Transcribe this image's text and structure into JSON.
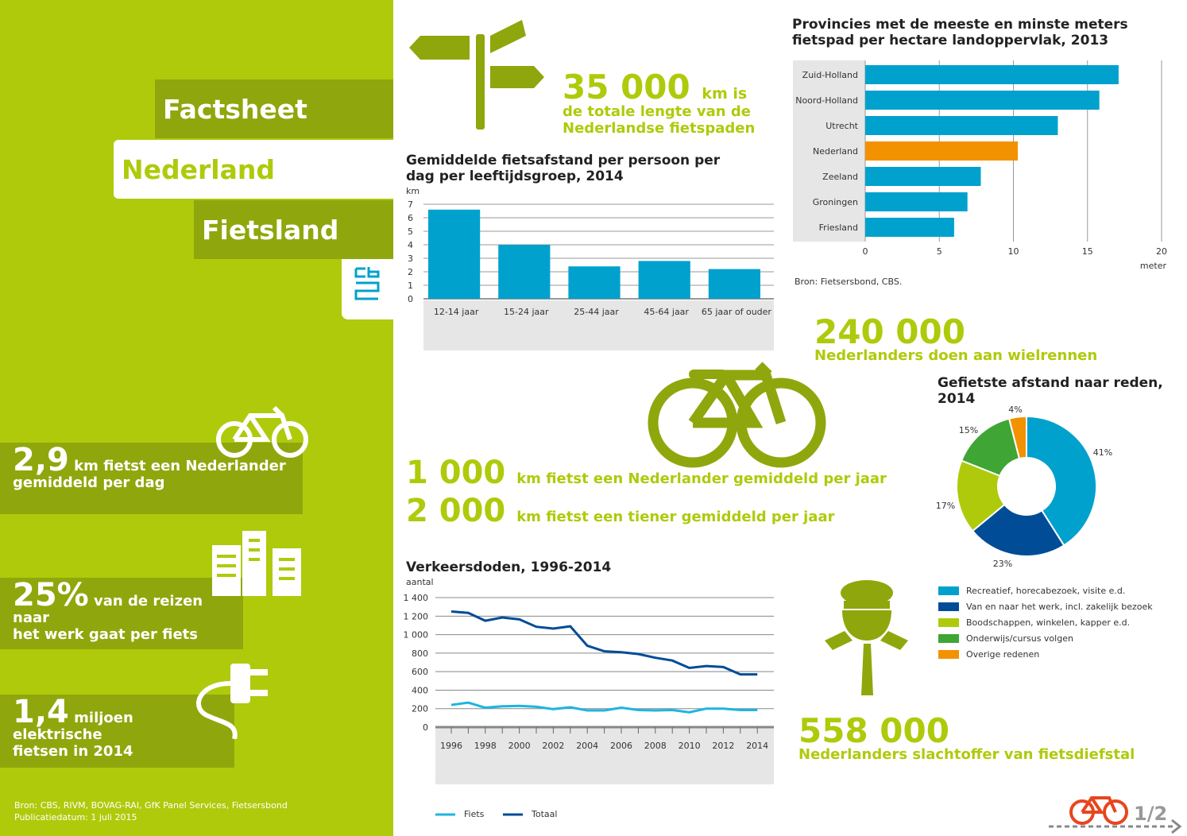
{
  "left": {
    "banners": [
      "Factsheet",
      "Nederland",
      "Fietsland"
    ],
    "stats": [
      {
        "big": "2,9",
        "text1": "km fietst een Nederlander",
        "text2": "gemiddeld per dag"
      },
      {
        "big": "25%",
        "text1": "van de reizen naar",
        "text2": "het werk gaat per fiets"
      },
      {
        "big": "1,4",
        "text1": "miljoen elektrische",
        "text2": "fietsen in 2014"
      }
    ],
    "source": "Bron: CBS, RIVM, BOVAG-RAI, GfK Panel Services, Fietsersbond",
    "date": "Publicatiedatum: 1 juli 2015"
  },
  "facts": {
    "f1_big": "35 000",
    "f1_unit": "km is",
    "f1_text1": "de totale lengte van de",
    "f1_text2": "Nederlandse fietspaden",
    "f2_big": "240 000",
    "f2_text": "Nederlanders doen aan wielrennen",
    "f3_big": "1 000",
    "f3_text": "km fietst een Nederlander gemiddeld per jaar",
    "f4_big": "2 000",
    "f4_text": "km fietst een tiener gemiddeld per jaar",
    "f5_big": "558 000",
    "f5_text": "Nederlanders slachtoffer van fietsdiefstal"
  },
  "page": "1/2",
  "colors": {
    "lime": "#afca0b",
    "olive": "#8fa70c",
    "blue": "#00a1cd",
    "darkblue": "#004c97",
    "orange": "#f39200",
    "green": "#3fa535"
  },
  "chart_data": [
    {
      "type": "bar",
      "title": "Gemiddelde fietsafstand per persoon per dag per leeftijdsgroep, 2014",
      "ylabel": "km",
      "ylim": [
        0,
        7
      ],
      "yticks": [
        0,
        1,
        2,
        3,
        4,
        5,
        6,
        7
      ],
      "categories": [
        "12-14 jaar",
        "15-24 jaar",
        "25-44 jaar",
        "45-64 jaar",
        "65 jaar of ouder"
      ],
      "values": [
        6.6,
        4.0,
        2.4,
        2.8,
        2.2
      ]
    },
    {
      "type": "bar",
      "orientation": "horizontal",
      "title": "Provincies met de meeste en minste meters fietspad per hectare landoppervlak, 2013",
      "xlabel": "meter",
      "xlim": [
        0,
        20
      ],
      "xticks": [
        0,
        5,
        10,
        15,
        20
      ],
      "categories": [
        "Zuid-Holland",
        "Noord-Holland",
        "Utrecht",
        "Nederland",
        "Zeeland",
        "Groningen",
        "Friesland"
      ],
      "values": [
        17.1,
        15.8,
        13.0,
        10.3,
        7.8,
        6.9,
        6.0
      ],
      "highlight": "Nederland",
      "source": "Bron: Fietsersbond, CBS."
    },
    {
      "type": "pie",
      "title": "Gefietste afstand naar reden, 2014",
      "categories": [
        "Recreatief, horecabezoek, visite e.d.",
        "Van en naar het werk, incl. zakelijk bezoek",
        "Boodschappen, winkelen, kapper e.d.",
        "Onderwijs/cursus volgen",
        "Overige redenen"
      ],
      "values": [
        41,
        23,
        17,
        15,
        4
      ],
      "labels": [
        "41%",
        "23%",
        "17%",
        "15%",
        "4%"
      ],
      "colors": [
        "#00a1cd",
        "#004c97",
        "#afca0b",
        "#3fa535",
        "#f39200"
      ]
    },
    {
      "type": "line",
      "title": "Verkeersdoden, 1996-2014",
      "ylabel": "aantal",
      "ylim": [
        0,
        1400
      ],
      "yticks": [
        "0",
        "200",
        "400",
        "600",
        "800",
        "1 000",
        "1 200",
        "1 400"
      ],
      "xticks": [
        "1996",
        "1998",
        "2000",
        "2002",
        "2004",
        "2006",
        "2008",
        "2010",
        "2012",
        "2014"
      ],
      "x": [
        1996,
        1997,
        1998,
        1999,
        2000,
        2001,
        2002,
        2003,
        2004,
        2005,
        2006,
        2007,
        2008,
        2009,
        2010,
        2011,
        2012,
        2013,
        2014
      ],
      "series": [
        {
          "name": "Fiets",
          "color": "#1fb4e0",
          "values": [
            240,
            265,
            210,
            225,
            230,
            220,
            195,
            215,
            180,
            180,
            210,
            185,
            180,
            185,
            160,
            200,
            200,
            185,
            185
          ]
        },
        {
          "name": "Totaal",
          "color": "#004c97",
          "values": [
            1250,
            1235,
            1150,
            1185,
            1165,
            1085,
            1065,
            1090,
            880,
            820,
            810,
            790,
            750,
            720,
            640,
            660,
            650,
            570,
            570
          ]
        }
      ]
    }
  ]
}
